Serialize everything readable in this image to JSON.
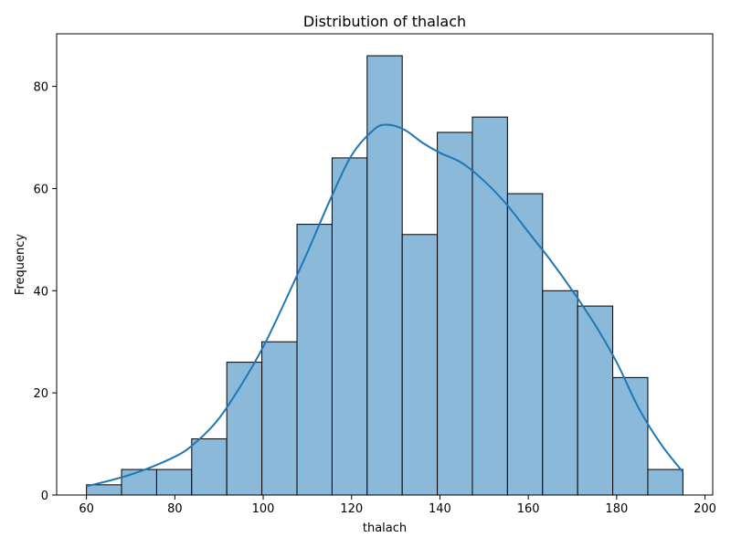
{
  "chart_data": {
    "type": "bar",
    "title": "Distribution of thalach",
    "xlabel": "thalach",
    "ylabel": "Frequency",
    "xlim": [
      53.25,
      201.75
    ],
    "ylim": [
      0,
      90.3
    ],
    "x_ticks": [
      60,
      80,
      100,
      120,
      140,
      160,
      180,
      200
    ],
    "y_ticks": [
      0,
      20,
      40,
      60,
      80
    ],
    "bin_edges": [
      60,
      67.94,
      75.88,
      83.82,
      91.76,
      99.7,
      107.65,
      115.59,
      123.53,
      131.47,
      139.41,
      147.35,
      155.29,
      163.24,
      171.18,
      179.12,
      187.06,
      195
    ],
    "values": [
      2,
      5,
      5,
      11,
      26,
      30,
      53,
      66,
      86,
      51,
      71,
      74,
      59,
      40,
      37,
      23,
      5
    ],
    "kde": {
      "x": [
        60,
        70,
        80,
        85,
        90,
        95,
        100,
        105,
        110,
        115,
        120,
        125,
        128,
        132,
        136,
        140,
        145,
        150,
        155,
        160,
        165,
        170,
        175,
        180,
        185,
        190,
        195
      ],
      "y": [
        1.7,
        4.0,
        7.5,
        10.5,
        15.0,
        21.5,
        29.0,
        38.0,
        47.5,
        57.5,
        66.5,
        71.5,
        72.5,
        71.5,
        69.0,
        67.0,
        65.0,
        61.5,
        57.0,
        51.5,
        46.0,
        40.0,
        33.5,
        26.0,
        17.0,
        10.0,
        4.5
      ]
    },
    "bar_color": "#8bb9da",
    "bar_edge_color": "#000000",
    "line_color": "#1f77b4",
    "grid": false,
    "legend": "none"
  }
}
